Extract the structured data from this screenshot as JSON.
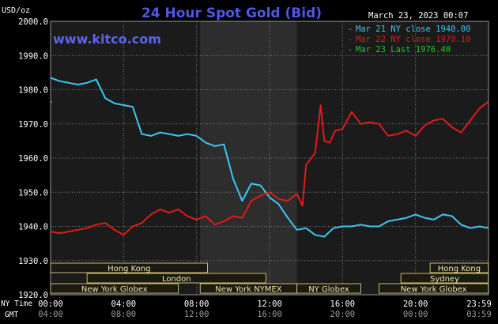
{
  "header": {
    "units": "USD/oz",
    "title": "24 Hour Spot Gold (Bid)",
    "datetime": "March 23, 2023 00:07",
    "site": "www.kitco.com"
  },
  "colors": {
    "background": "#000000",
    "plot_bg": "#1b1b1b",
    "nymex_bg": "#2d2d2d",
    "grid": "#7a7a7a",
    "text": "#ffffff",
    "title": "#4f57e6",
    "site": "#5a63f0",
    "series_mar21": "#3ec6f0",
    "series_mar22": "#e11a1a",
    "series_mar23": "#22c522",
    "session_box_bg": "#1a1a10",
    "session_box_border": "#c8b878",
    "session_text": "#f0e6b0"
  },
  "axis_labels": {
    "ny_time": "NY Time",
    "gmt": "GMT"
  },
  "sessions": [
    {
      "label": "Hong Kong",
      "row": 0,
      "start": 0,
      "end": 8.6
    },
    {
      "label": "Hong Kong",
      "row": 0,
      "start": 20.8,
      "end": 23.99
    },
    {
      "label": "London",
      "row": 1,
      "start": 2.0,
      "end": 11.8
    },
    {
      "label": "Sydney",
      "row": 1,
      "start": 19.2,
      "end": 23.99
    },
    {
      "label": "New York Globex",
      "row": 2,
      "start": 0,
      "end": 7.0
    },
    {
      "label": "New York NYMEX",
      "row": 2,
      "start": 8.2,
      "end": 13.5
    },
    {
      "label": "NY Globex",
      "row": 2,
      "start": 13.5,
      "end": 17.0
    },
    {
      "label": "New York Globex",
      "row": 2,
      "start": 18.0,
      "end": 23.99
    }
  ],
  "chart_data": {
    "type": "line",
    "title": "24 Hour Spot Gold (Bid)",
    "ylabel": "USD/oz",
    "ylim": [
      1920,
      2000
    ],
    "yticks": [
      "2000.0",
      "1990.0",
      "1980.0",
      "1970.0",
      "1960.0",
      "1950.0",
      "1940.0",
      "1930.0",
      "1920.0"
    ],
    "xlim": [
      0,
      24
    ],
    "x_ticks_ny": [
      "00:00",
      "04:00",
      "08:00",
      "12:00",
      "16:00",
      "20:00",
      "23:59"
    ],
    "x_ticks_gmt": [
      "04:00",
      "08:00",
      "12:00",
      "16:00",
      "20:00",
      "00:00",
      "03:59"
    ],
    "nymex_session": [
      8.2,
      13.5
    ],
    "grid": true,
    "legend_position": "top-right",
    "series": [
      {
        "name": "Mar 21 NY close 1940.00",
        "color": "#3ec6f0",
        "x": [
          0,
          0.5,
          1.0,
          1.5,
          2.0,
          2.5,
          3.0,
          3.5,
          4.0,
          4.5,
          5.0,
          5.5,
          6.0,
          6.5,
          7.0,
          7.5,
          8.0,
          8.5,
          9.0,
          9.5,
          10.0,
          10.5,
          11.0,
          11.5,
          12.0,
          12.5,
          13.0,
          13.5,
          14.0,
          14.5,
          15.0,
          15.5,
          16.0,
          16.5,
          17.0,
          17.5,
          18.0,
          18.5,
          19.0,
          19.5,
          20.0,
          20.5,
          21.0,
          21.5,
          22.0,
          22.5,
          23.0,
          23.5,
          23.99
        ],
        "values": [
          1983.5,
          1982.5,
          1982.0,
          1981.5,
          1982.0,
          1983.0,
          1977.5,
          1976.0,
          1975.5,
          1975.0,
          1967.0,
          1966.5,
          1967.5,
          1967.0,
          1966.5,
          1967.0,
          1966.5,
          1964.5,
          1963.5,
          1964.0,
          1954.0,
          1947.5,
          1952.5,
          1952.0,
          1948.5,
          1946.5,
          1942.5,
          1939.0,
          1939.5,
          1937.5,
          1937.0,
          1939.5,
          1940.0,
          1940.0,
          1940.5,
          1940.0,
          1940.0,
          1941.5,
          1942.0,
          1942.5,
          1943.5,
          1942.5,
          1942.0,
          1943.5,
          1943.0,
          1940.5,
          1939.5,
          1940.0,
          1939.5
        ]
      },
      {
        "name": "Mar 22 NY close 1970.10",
        "color": "#e11a1a",
        "x": [
          0,
          0.5,
          1.0,
          1.5,
          2.0,
          2.5,
          3.0,
          3.5,
          4.0,
          4.5,
          5.0,
          5.5,
          6.0,
          6.5,
          7.0,
          7.5,
          8.0,
          8.5,
          9.0,
          9.5,
          10.0,
          10.5,
          11.0,
          11.5,
          12.0,
          12.5,
          13.0,
          13.5,
          13.8,
          14.0,
          14.5,
          14.8,
          15.0,
          15.3,
          15.6,
          16.0,
          16.5,
          17.0,
          17.5,
          18.0,
          18.5,
          19.0,
          19.5,
          20.0,
          20.5,
          21.0,
          21.5,
          22.0,
          22.5,
          23.0,
          23.5,
          23.99
        ],
        "values": [
          1938.5,
          1938.0,
          1938.5,
          1939.0,
          1939.5,
          1940.5,
          1941.0,
          1939.0,
          1937.5,
          1940.0,
          1941.0,
          1943.5,
          1945.0,
          1944.0,
          1945.0,
          1943.0,
          1942.0,
          1943.0,
          1940.5,
          1941.5,
          1943.0,
          1942.5,
          1947.5,
          1949.0,
          1950.0,
          1948.0,
          1947.5,
          1949.5,
          1946.0,
          1958.0,
          1961.5,
          1975.5,
          1965.0,
          1964.5,
          1968.0,
          1968.5,
          1973.5,
          1970.0,
          1970.5,
          1970.0,
          1966.5,
          1967.0,
          1968.0,
          1966.5,
          1969.5,
          1971.0,
          1971.5,
          1969.0,
          1967.5,
          1971.0,
          1974.5,
          1976.5
        ]
      },
      {
        "name": "Mar 23 Last 1976.40",
        "color": "#22c522",
        "x": [
          0,
          0.08
        ],
        "values": [
          1976.5,
          1976.3
        ]
      }
    ]
  }
}
